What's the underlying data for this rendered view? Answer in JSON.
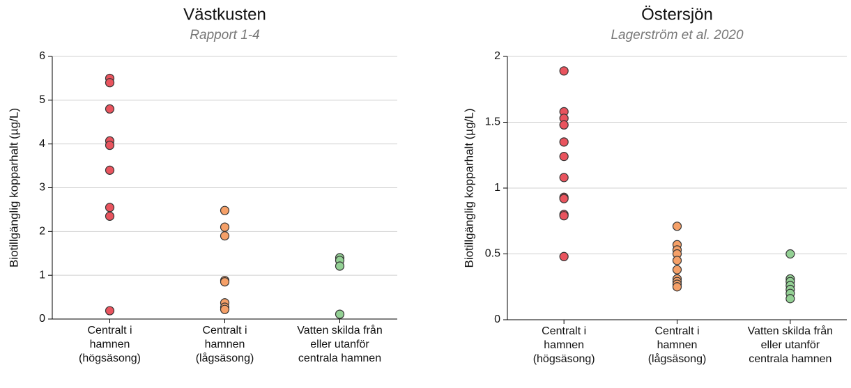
{
  "chart_data": [
    {
      "type": "strip",
      "title": "Västkusten",
      "subtitle": "Rapport 1-4",
      "ylabel": "Biotillgänglig kopparhalt (µg/L)",
      "categories": [
        [
          "Centralt i",
          "hamnen",
          "(högsäsong)"
        ],
        [
          "Centralt i",
          "hamnen",
          "(lågsäsong)"
        ],
        [
          "Vatten skilda från",
          "eller utanför",
          "centrala hamnen"
        ]
      ],
      "colors": [
        "#e9545e",
        "#f5a068",
        "#93d094"
      ],
      "values": [
        [
          5.5,
          5.4,
          4.8,
          4.07,
          3.97,
          3.4,
          2.55,
          2.35,
          0.19
        ],
        [
          2.48,
          2.1,
          1.9,
          0.88,
          0.85,
          0.37,
          0.27,
          0.22
        ],
        [
          1.4,
          1.34,
          1.21,
          0.11
        ]
      ],
      "ylim": [
        0,
        6
      ],
      "yticks": [
        0,
        1,
        2,
        3,
        4,
        5,
        6
      ],
      "grid": true
    },
    {
      "type": "strip",
      "title": "Östersjön",
      "subtitle": "Lagerström et al. 2020",
      "ylabel": "Biotillgänglig kopparhalt (µg/L)",
      "categories": [
        [
          "Centralt i",
          "hamnen",
          "(högsäsong)"
        ],
        [
          "Centralt i",
          "hamnen",
          "(lågsäsong)"
        ],
        [
          "Vatten skilda från",
          "eller utanför",
          "centrala hamnen"
        ]
      ],
      "colors": [
        "#e9545e",
        "#f5a068",
        "#93d094"
      ],
      "values": [
        [
          1.89,
          1.58,
          1.53,
          1.48,
          1.35,
          1.24,
          1.08,
          0.93,
          0.92,
          0.8,
          0.79,
          0.48
        ],
        [
          0.71,
          0.57,
          0.53,
          0.5,
          0.45,
          0.38,
          0.31,
          0.29,
          0.27,
          0.25
        ],
        [
          0.5,
          0.31,
          0.29,
          0.26,
          0.23,
          0.2,
          0.16
        ]
      ],
      "ylim": [
        0,
        2
      ],
      "yticks": [
        0,
        0.5,
        1,
        1.5,
        2
      ],
      "grid": true
    }
  ]
}
